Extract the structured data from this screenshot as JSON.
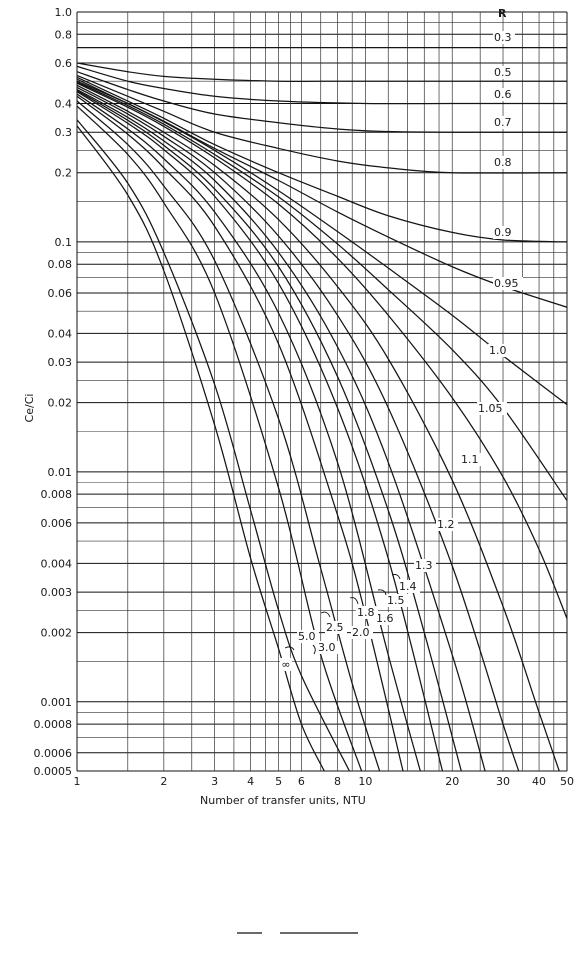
{
  "chart_data": {
    "type": "line",
    "xscale": "log",
    "yscale": "log",
    "xlim": [
      1,
      50
    ],
    "ylim": [
      0.0005,
      1.0
    ],
    "xlabel": "Number of transfer units, NTU",
    "ylabel": "Ce/Ci",
    "legend_title": "R",
    "x_ticks": [
      {
        "value": 1,
        "label": "1"
      },
      {
        "value": 2,
        "label": "2"
      },
      {
        "value": 3,
        "label": "3"
      },
      {
        "value": 4,
        "label": "4"
      },
      {
        "value": 5,
        "label": "5"
      },
      {
        "value": 6,
        "label": "6"
      },
      {
        "value": 8,
        "label": "8"
      },
      {
        "value": 10,
        "label": "10"
      },
      {
        "value": 20,
        "label": "20"
      },
      {
        "value": 30,
        "label": "30"
      },
      {
        "value": 40,
        "label": "40"
      },
      {
        "value": 50,
        "label": "50"
      }
    ],
    "x_grid": [
      1,
      1.5,
      2,
      2.5,
      3,
      3.5,
      4,
      4.5,
      5,
      5.5,
      6,
      7,
      8,
      9,
      10,
      12,
      14,
      16,
      18,
      20,
      25,
      30,
      35,
      40,
      45,
      50
    ],
    "y_ticks": [
      {
        "value": 1.0,
        "label": "1.0"
      },
      {
        "value": 0.8,
        "label": "0.8"
      },
      {
        "value": 0.6,
        "label": "0.6"
      },
      {
        "value": 0.4,
        "label": "0.4"
      },
      {
        "value": 0.3,
        "label": "0.3"
      },
      {
        "value": 0.2,
        "label": "0.2"
      },
      {
        "value": 0.1,
        "label": "0.1"
      },
      {
        "value": 0.08,
        "label": "0.08"
      },
      {
        "value": 0.06,
        "label": "0.06"
      },
      {
        "value": 0.04,
        "label": "0.04"
      },
      {
        "value": 0.03,
        "label": "0.03"
      },
      {
        "value": 0.02,
        "label": "0.02"
      },
      {
        "value": 0.01,
        "label": "0.01"
      },
      {
        "value": 0.008,
        "label": "0.008"
      },
      {
        "value": 0.006,
        "label": "0.006"
      },
      {
        "value": 0.004,
        "label": "0.004"
      },
      {
        "value": 0.003,
        "label": "0.003"
      },
      {
        "value": 0.002,
        "label": "0.002"
      },
      {
        "value": 0.001,
        "label": "0.001"
      },
      {
        "value": 0.0008,
        "label": "0.0008"
      },
      {
        "value": 0.0006,
        "label": "0.0006"
      },
      {
        "value": 0.0005,
        "label": "0.0005"
      }
    ],
    "y_grid": [
      1.0,
      0.9,
      0.8,
      0.7,
      0.6,
      0.5,
      0.4,
      0.3,
      0.25,
      0.2,
      0.15,
      0.1,
      0.09,
      0.08,
      0.07,
      0.06,
      0.05,
      0.04,
      0.03,
      0.025,
      0.02,
      0.015,
      0.01,
      0.009,
      0.008,
      0.007,
      0.006,
      0.005,
      0.004,
      0.003,
      0.0025,
      0.002,
      0.0015,
      0.001,
      0.0009,
      0.0008,
      0.0007,
      0.0006,
      0.0005
    ],
    "grid": true,
    "series": [
      {
        "name": "0.3",
        "x": [
          1,
          1.5,
          2,
          5,
          10,
          50
        ],
        "y": [
          0.7,
          0.7,
          0.7,
          0.7,
          0.7,
          0.7
        ]
      },
      {
        "name": "0.5",
        "x": [
          1,
          1.5,
          2,
          3,
          5,
          10,
          50
        ],
        "y": [
          0.6,
          0.55,
          0.525,
          0.51,
          0.5,
          0.5,
          0.5
        ]
      },
      {
        "name": "0.6",
        "x": [
          1,
          1.5,
          2,
          3,
          5,
          10,
          20,
          50
        ],
        "y": [
          0.58,
          0.5,
          0.465,
          0.43,
          0.41,
          0.4,
          0.4,
          0.4
        ]
      },
      {
        "name": "0.7",
        "x": [
          1,
          1.5,
          2,
          3,
          5,
          8,
          12,
          20,
          50
        ],
        "y": [
          0.55,
          0.46,
          0.41,
          0.36,
          0.33,
          0.31,
          0.302,
          0.3,
          0.3
        ]
      },
      {
        "name": "0.8",
        "x": [
          1,
          1.5,
          2,
          3,
          5,
          8,
          12,
          20,
          50
        ],
        "y": [
          0.53,
          0.43,
          0.37,
          0.3,
          0.255,
          0.225,
          0.21,
          0.2,
          0.2
        ]
      },
      {
        "name": "0.9",
        "x": [
          1,
          1.5,
          2,
          3,
          5,
          8,
          12,
          20,
          30,
          50
        ],
        "y": [
          0.52,
          0.41,
          0.345,
          0.265,
          0.2,
          0.158,
          0.13,
          0.11,
          0.102,
          0.1
        ]
      },
      {
        "name": "0.95",
        "x": [
          1,
          1.5,
          2,
          3,
          5,
          8,
          12,
          20,
          30,
          50
        ],
        "y": [
          0.51,
          0.4,
          0.335,
          0.255,
          0.185,
          0.135,
          0.105,
          0.078,
          0.064,
          0.052
        ]
      },
      {
        "name": "1.0",
        "x": [
          1,
          1.5,
          2,
          3,
          5,
          8,
          12,
          20,
          30,
          50
        ],
        "y": [
          0.5,
          0.4,
          0.333,
          0.25,
          0.167,
          0.111,
          0.077,
          0.048,
          0.032,
          0.0196
        ]
      },
      {
        "name": "1.05",
        "x": [
          1,
          1.5,
          2,
          3,
          5,
          8,
          12,
          20,
          30,
          50
        ],
        "y": [
          0.495,
          0.392,
          0.325,
          0.24,
          0.157,
          0.098,
          0.062,
          0.034,
          0.019,
          0.0075
        ]
      },
      {
        "name": "1.1",
        "x": [
          1,
          1.5,
          2,
          3,
          5,
          8,
          12,
          20,
          30,
          40,
          50
        ],
        "y": [
          0.49,
          0.385,
          0.318,
          0.232,
          0.146,
          0.085,
          0.048,
          0.021,
          0.0095,
          0.0046,
          0.0023
        ]
      },
      {
        "name": "1.2",
        "x": [
          1,
          1.5,
          2,
          3,
          5,
          8,
          12,
          20,
          30,
          40,
          47
        ],
        "y": [
          0.48,
          0.37,
          0.3,
          0.215,
          0.125,
          0.064,
          0.031,
          0.0092,
          0.0026,
          0.0009,
          0.0005
        ]
      },
      {
        "name": "1.3",
        "x": [
          1,
          1.5,
          2,
          3,
          5,
          8,
          12,
          20,
          30,
          34
        ],
        "y": [
          0.47,
          0.36,
          0.288,
          0.2,
          0.106,
          0.048,
          0.019,
          0.0039,
          0.0008,
          0.0005
        ]
      },
      {
        "name": "1.4",
        "x": [
          1,
          1.5,
          2,
          3,
          5,
          8,
          12,
          20,
          26
        ],
        "y": [
          0.46,
          0.348,
          0.275,
          0.185,
          0.09,
          0.035,
          0.011,
          0.0016,
          0.0005
        ]
      },
      {
        "name": "1.5",
        "x": [
          1,
          1.5,
          2,
          3,
          5,
          8,
          12,
          16,
          21.5
        ],
        "y": [
          0.455,
          0.338,
          0.263,
          0.17,
          0.078,
          0.026,
          0.0068,
          0.002,
          0.0005
        ]
      },
      {
        "name": "1.6",
        "x": [
          1,
          1.5,
          2,
          3,
          5,
          8,
          12,
          18.5
        ],
        "y": [
          0.45,
          0.328,
          0.252,
          0.158,
          0.066,
          0.019,
          0.0042,
          0.0005
        ]
      },
      {
        "name": "1.8",
        "x": [
          1,
          1.5,
          2,
          3,
          5,
          8,
          12,
          15.5
        ],
        "y": [
          0.44,
          0.31,
          0.23,
          0.135,
          0.049,
          0.011,
          0.0016,
          0.0005
        ]
      },
      {
        "name": "2.0",
        "x": [
          1,
          1.5,
          2,
          3,
          5,
          8,
          10,
          13.5
        ],
        "y": [
          0.43,
          0.294,
          0.21,
          0.117,
          0.036,
          0.0065,
          0.0024,
          0.0005
        ]
      },
      {
        "name": "2.5",
        "x": [
          1,
          1.5,
          2,
          3,
          5,
          7,
          9,
          11.2
        ],
        "y": [
          0.41,
          0.265,
          0.175,
          0.083,
          0.017,
          0.0038,
          0.0012,
          0.0005
        ]
      },
      {
        "name": "3.0",
        "x": [
          1,
          1.5,
          2,
          3,
          5,
          7,
          9.7
        ],
        "y": [
          0.39,
          0.24,
          0.148,
          0.06,
          0.0085,
          0.0016,
          0.0005
        ]
      },
      {
        "name": "5.0",
        "x": [
          1,
          1.5,
          2,
          3,
          4,
          5,
          6,
          8.8
        ],
        "y": [
          0.34,
          0.18,
          0.09,
          0.024,
          0.0068,
          0.0025,
          0.0013,
          0.0005
        ]
      },
      {
        "name": "∞",
        "x": [
          1,
          1.5,
          2,
          3,
          4,
          5,
          6,
          7.2
        ],
        "y": [
          0.32,
          0.16,
          0.075,
          0.016,
          0.0042,
          0.0017,
          0.0008,
          0.0005
        ]
      }
    ]
  }
}
